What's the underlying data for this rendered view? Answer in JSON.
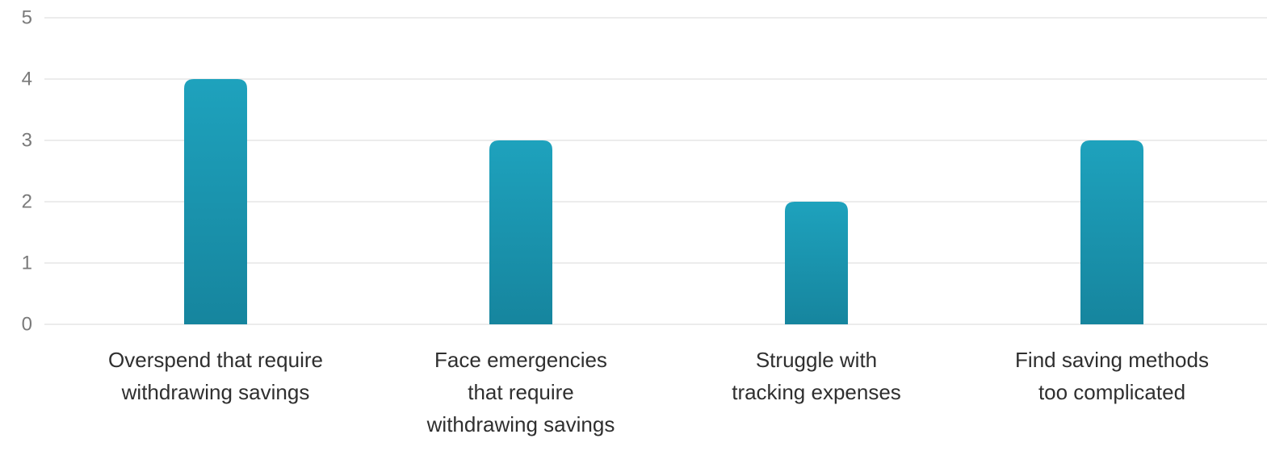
{
  "chart_data": {
    "type": "bar",
    "title": "",
    "xlabel": "",
    "ylabel": "",
    "ylim": [
      0,
      5
    ],
    "yticks": [
      0,
      1,
      2,
      3,
      4,
      5
    ],
    "grid": true,
    "categories": [
      [
        "Overspend that require",
        "withdrawing savings"
      ],
      [
        "Face emergencies",
        "that require",
        "withdrawing savings"
      ],
      [
        "Struggle with",
        "tracking expenses"
      ],
      [
        "Find saving methods",
        "too complicated"
      ]
    ],
    "values": [
      4,
      3,
      2,
      3
    ],
    "colors": {
      "bar_top": "#1ea2bd",
      "bar_bottom": "#16859e"
    }
  }
}
